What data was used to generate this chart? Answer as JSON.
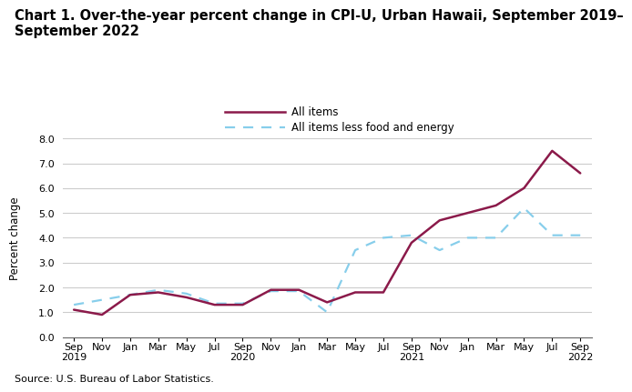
{
  "title_line1": "Chart 1. Over-the-year percent change in CPI-U, Urban Hawaii, September 2019–",
  "title_line2": "September 2022",
  "ylabel": "Percent change",
  "source": "Source: U.S. Bureau of Labor Statistics.",
  "ylim": [
    0.0,
    8.0
  ],
  "yticks": [
    0.0,
    1.0,
    2.0,
    3.0,
    4.0,
    5.0,
    6.0,
    7.0,
    8.0
  ],
  "x_labels": [
    "Sep\n2019",
    "Nov",
    "Jan",
    "Mar",
    "May",
    "Jul",
    "Sep\n2020",
    "Nov",
    "Jan",
    "Mar",
    "May",
    "Jul",
    "Sep\n2021",
    "Nov",
    "Jan",
    "Mar",
    "May",
    "Jul",
    "Sep\n2022"
  ],
  "all_items": [
    1.1,
    0.9,
    1.7,
    1.8,
    1.6,
    1.3,
    1.3,
    1.9,
    1.9,
    1.4,
    1.8,
    1.8,
    3.8,
    4.7,
    5.0,
    5.3,
    6.0,
    7.5,
    6.6
  ],
  "all_items_less": [
    1.3,
    1.5,
    1.7,
    1.9,
    1.75,
    1.35,
    1.35,
    1.85,
    1.85,
    1.0,
    3.5,
    4.0,
    4.1,
    3.5,
    4.0,
    4.0,
    5.2,
    4.1,
    4.1
  ],
  "all_items_color": "#8B1A4A",
  "all_items_less_color": "#87CEEB",
  "grid_color": "#cccccc",
  "background_color": "#ffffff",
  "title_fontsize": 10.5,
  "axis_fontsize": 8.5,
  "tick_fontsize": 8.0,
  "legend_fontsize": 8.5,
  "source_fontsize": 8.0
}
